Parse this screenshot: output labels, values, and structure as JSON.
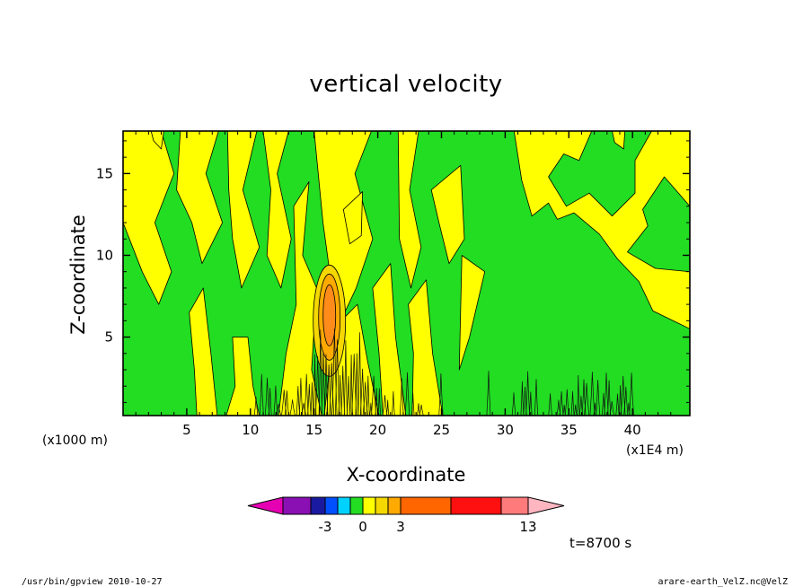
{
  "title": "vertical velocity",
  "chart_data": {
    "type": "heatmap",
    "title": "vertical velocity",
    "xlabel": "X-coordinate",
    "ylabel": "Z-coordinate",
    "x_unit": "(x1E4 m)",
    "y_unit": "(x1000 m)",
    "xlim": [
      0,
      44.5
    ],
    "ylim": [
      0.2,
      17.6
    ],
    "x_ticks": [
      5,
      10,
      15,
      20,
      25,
      30,
      35,
      40
    ],
    "y_ticks": [
      5,
      10,
      15
    ],
    "colorbar": {
      "labels": [
        {
          "text": "-3",
          "value": -3
        },
        {
          "text": "0",
          "value": 0
        },
        {
          "text": "3",
          "value": 3
        },
        {
          "text": "13",
          "value": 13
        }
      ],
      "levels": [
        -5,
        -4,
        -3,
        -2,
        -1,
        0,
        1,
        2,
        3,
        7,
        11,
        13
      ],
      "colors": [
        "#e600b4",
        "#8a10b4",
        "#1a1aa0",
        "#0050ff",
        "#00d2ff",
        "#22dd22",
        "#ffff00",
        "#f5d800",
        "#ffaa00",
        "#ff6600",
        "#ff1010",
        "#ff7a7a",
        "#ffb6c1"
      ]
    },
    "features": [
      {
        "name": "strong updraft core",
        "x": 16.2,
        "z": 6.0,
        "value": 7
      },
      {
        "name": "turbulent low-level band",
        "x_range": [
          10,
          40
        ],
        "z_range": [
          0.2,
          3
        ]
      }
    ],
    "time": "t=8700 s"
  },
  "footer": {
    "left": "/usr/bin/gpview   2010-10-27",
    "right": "arare-earth_VelZ.nc@VelZ"
  },
  "colors": {
    "green": "#22dd22",
    "yellow": "#ffff00",
    "orange": "#ff8c1a"
  }
}
